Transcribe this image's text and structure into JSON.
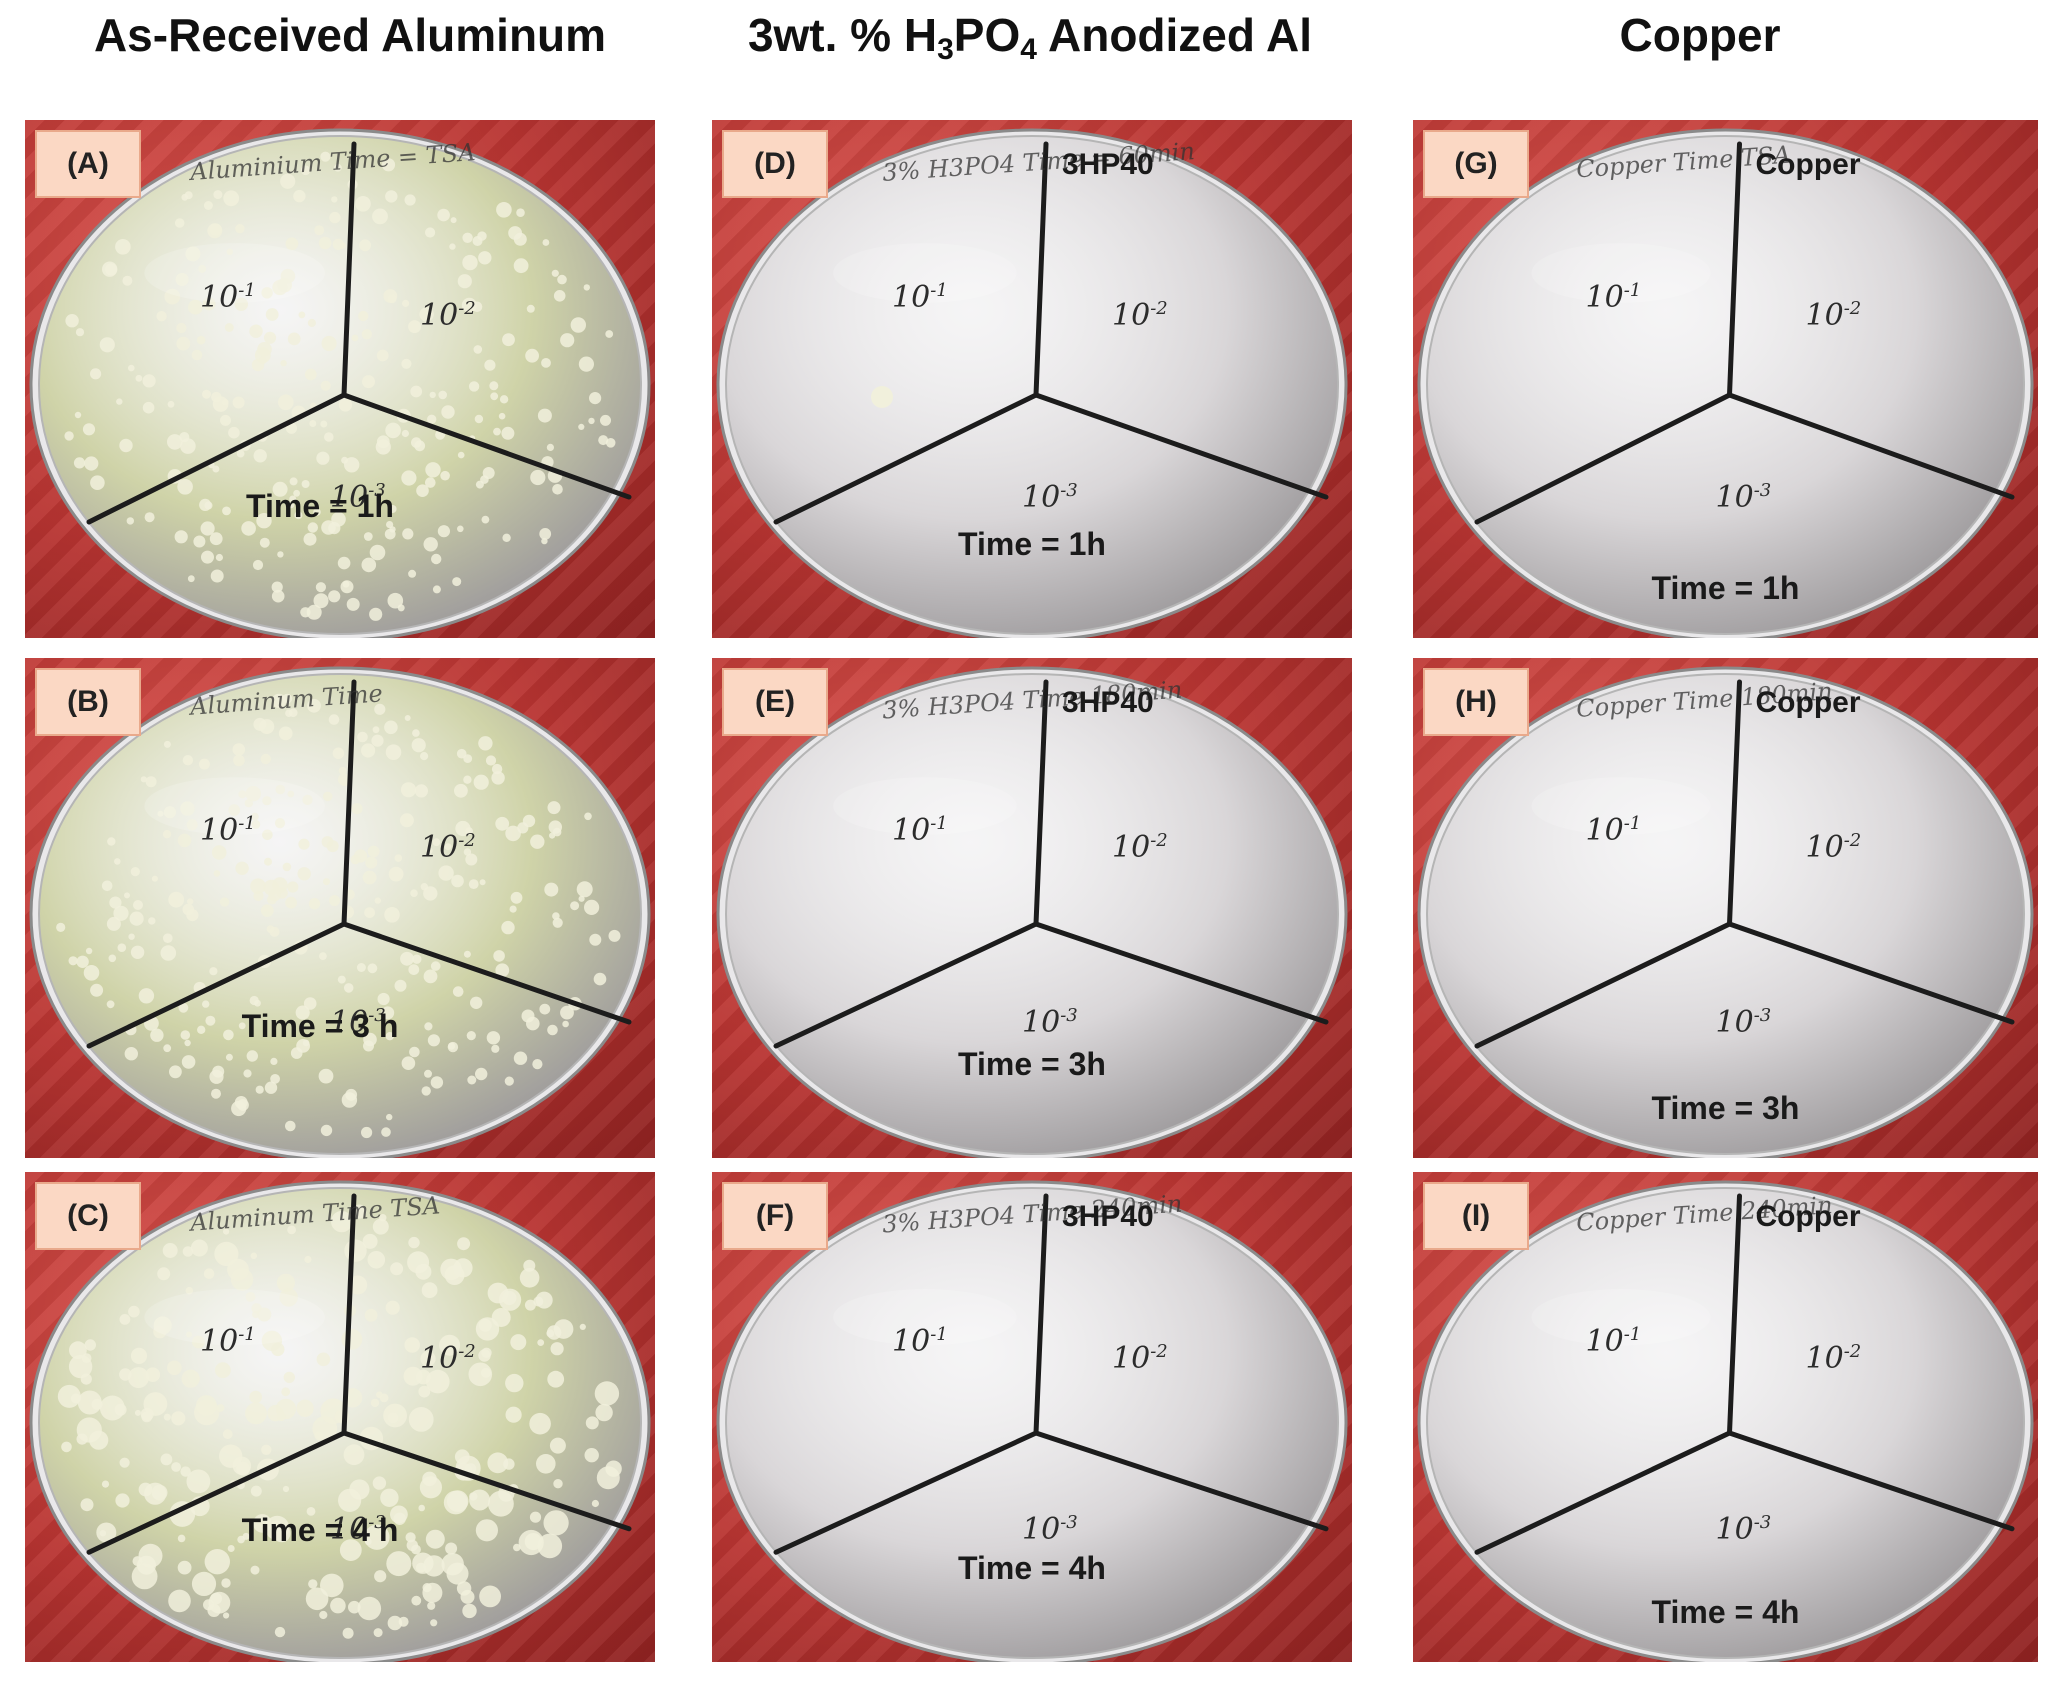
{
  "columns": [
    {
      "title_parts": [
        "As-Received Aluminum"
      ]
    },
    {
      "title_parts": [
        "3wt. % H",
        "3",
        "PO",
        "4",
        " Anodized Al"
      ]
    },
    {
      "title_parts": [
        "Copper"
      ]
    }
  ],
  "panels": [
    {
      "label": "(A)",
      "time": "Time = 1h",
      "sample": "",
      "zones": [
        "10",
        "10",
        "10"
      ],
      "exps": [
        "-1",
        "-2",
        "-3"
      ],
      "scribble": "Aluminium  Time = TSA"
    },
    {
      "label": "(B)",
      "time": "Time = 3 h",
      "sample": "",
      "zones": [
        "10",
        "10",
        "10"
      ],
      "exps": [
        "-1",
        "-2",
        "-3"
      ],
      "scribble": "Aluminum  Time"
    },
    {
      "label": "(C)",
      "time": "Time = 4 h",
      "sample": "",
      "zones": [
        "10",
        "10",
        "10"
      ],
      "exps": [
        "-1",
        "-2",
        "-3"
      ],
      "scribble": "Aluminum  Time TSA"
    },
    {
      "label": "(D)",
      "time": "Time = 1h",
      "sample": "3HP40",
      "zones": [
        "10",
        "10",
        "10"
      ],
      "exps": [
        "-1",
        "-2",
        "-3"
      ],
      "scribble": "3% H3PO4  Time = 60min"
    },
    {
      "label": "(E)",
      "time": "Time = 3h",
      "sample": "3HP40",
      "zones": [
        "10",
        "10",
        "10"
      ],
      "exps": [
        "-1",
        "-2",
        "-3"
      ],
      "scribble": "3% H3PO4  Time 180min"
    },
    {
      "label": "(F)",
      "time": "Time = 4h",
      "sample": "3HP40",
      "zones": [
        "10",
        "10",
        "10"
      ],
      "exps": [
        "-1",
        "-2",
        "-3"
      ],
      "scribble": "3% H3PO4  Time 240min"
    },
    {
      "label": "(G)",
      "time": "Time = 1h",
      "sample": "Copper",
      "zones": [
        "10",
        "10",
        "10"
      ],
      "exps": [
        "-1",
        "-2",
        "-3"
      ],
      "scribble": "Copper  Time TSA"
    },
    {
      "label": "(H)",
      "time": "Time = 3h",
      "sample": "Copper",
      "zones": [
        "10",
        "10",
        "10"
      ],
      "exps": [
        "-1",
        "-2",
        "-3"
      ],
      "scribble": "Copper  Time 180min"
    },
    {
      "label": "(I)",
      "time": "Time = 4h",
      "sample": "Copper",
      "zones": [
        "10",
        "10",
        "10"
      ],
      "exps": [
        "-1",
        "-2",
        "-3"
      ],
      "scribble": "Copper  Time 240min"
    }
  ],
  "colors": {
    "background": "#b83431",
    "agar_colonized": "#cfd3a8",
    "agar_clear": "#d9d6d8",
    "colony": "#f1f0dc"
  }
}
